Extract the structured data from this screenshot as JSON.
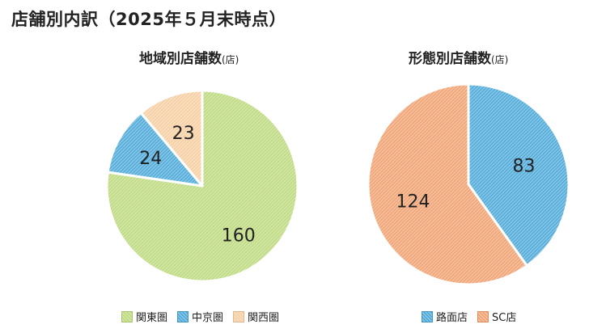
{
  "page_title": "店舗別内訳（2025年５月末時点）",
  "chart_data": [
    {
      "type": "pie",
      "title": "地域別店舗数",
      "unit": "(店)",
      "legend_position": "bottom",
      "categories": [
        "関東圏",
        "中京圏",
        "関西圏"
      ],
      "values": [
        160,
        24,
        23
      ],
      "colors": [
        "#bcd97c",
        "#4aa8d8",
        "#f5cda0"
      ],
      "data_labels": [
        "160",
        "24",
        "23"
      ]
    },
    {
      "type": "pie",
      "title": "形態別店舗数",
      "unit": "(店)",
      "legend_position": "bottom",
      "categories": [
        "路面店",
        "SC店"
      ],
      "values": [
        83,
        124
      ],
      "colors": [
        "#4aa8d8",
        "#f0a06e"
      ],
      "data_labels": [
        "83",
        "124"
      ]
    }
  ]
}
